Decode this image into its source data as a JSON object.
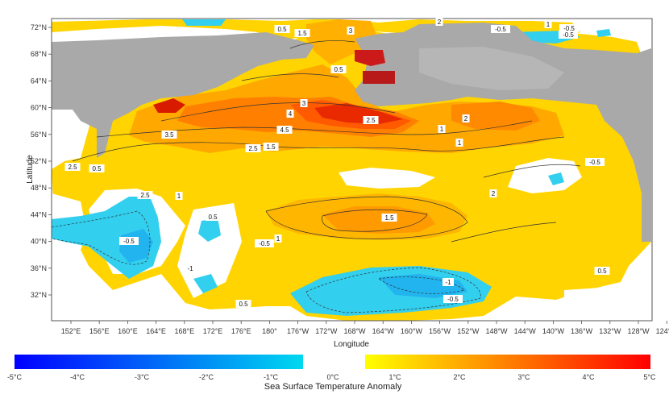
{
  "chart_data": {
    "type": "heatmap",
    "title": "",
    "xlabel": "Longitude",
    "ylabel": "Latitude",
    "x_ticks": [
      "152°E",
      "156°E",
      "160°E",
      "164°E",
      "168°E",
      "172°E",
      "176°E",
      "180°",
      "176°W",
      "172°W",
      "168°W",
      "164°W",
      "160°W",
      "156°W",
      "152°W",
      "148°W",
      "144°W",
      "140°W",
      "136°W",
      "132°W",
      "128°W",
      "124°W"
    ],
    "y_ticks": [
      "72°N",
      "68°N",
      "64°N",
      "60°N",
      "56°N",
      "52°N",
      "48°N",
      "44°N",
      "40°N",
      "36°N",
      "32°N"
    ],
    "xlim": [
      "150°E",
      "122°W"
    ],
    "ylim": [
      "28°N",
      "74°N"
    ],
    "land_color": "#a9a9a9",
    "colorbar": {
      "title": "Sea Surface Temperature Anomaly",
      "tick_labels": [
        "-5°C",
        "-4°C",
        "-3°C",
        "-2°C",
        "-1°C",
        "0°C",
        "1°C",
        "2°C",
        "3°C",
        "4°C",
        "5°C"
      ],
      "neg_colors": [
        "#0000ff",
        "#00d8f0"
      ],
      "pos_colors": [
        "#ffff00",
        "#ff0000"
      ]
    },
    "contour_labels": [
      "0.5",
      "1.5",
      "3",
      "2",
      "1",
      "-0.5",
      "-0.5",
      "0.5",
      "2.5",
      "3.5",
      "4",
      "3",
      "4.5",
      "2.5",
      "2",
      "1",
      "-0.5",
      "1",
      "2.5",
      "1.5",
      "2.5",
      "0.5",
      "-0.5",
      "-1",
      "-0.5",
      "1",
      "1.5",
      "2",
      "-0.5",
      "-1",
      "-0.5",
      "0.5",
      "0.5",
      "1",
      "0.5"
    ],
    "regions": [
      {
        "name": "north-pacific-main-warm",
        "anomaly": 2.0
      },
      {
        "name": "aleutian-peak",
        "anomaly": 4.5
      },
      {
        "name": "kamchatka-warm",
        "anomaly": 3.0
      },
      {
        "name": "bering-warm",
        "anomaly": 2.5
      },
      {
        "name": "central-pacific-band",
        "anomaly": 2.0
      },
      {
        "name": "subtropical-cool",
        "anomaly": -1.0
      },
      {
        "name": "western-cool",
        "anomaly": -1.0
      }
    ]
  }
}
